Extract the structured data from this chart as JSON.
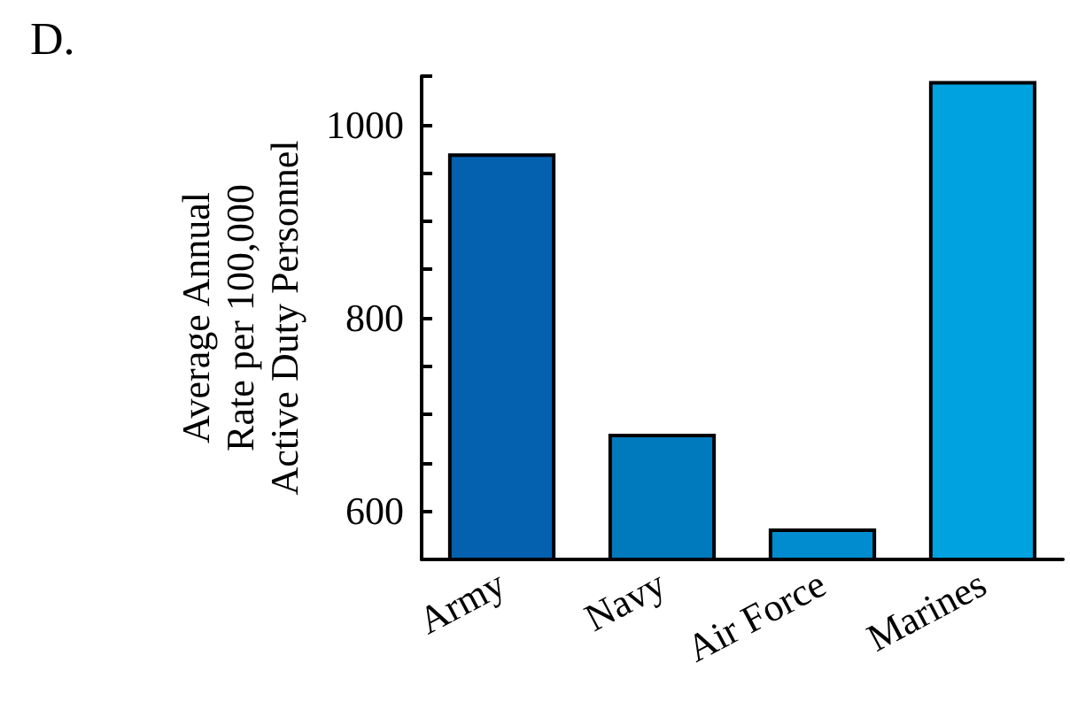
{
  "chart_data": {
    "type": "bar",
    "title": "D.",
    "ylabel": "Average Annual\nRate per 100,000\nActive Duty Personnel",
    "categories": [
      "Army",
      "Navy",
      "Air Force",
      "Marines"
    ],
    "values": [
      970,
      680,
      582,
      1045
    ],
    "colors": [
      "#0461b0",
      "#0079bd",
      "#008ccf",
      "#00a2e0"
    ],
    "ylim": [
      550,
      1050
    ],
    "yticks": [
      {
        "value": 550,
        "label": null
      },
      600,
      {
        "value": 650,
        "label": null
      },
      {
        "value": 700,
        "label": null
      },
      {
        "value": 750,
        "label": null
      },
      800,
      {
        "value": 850,
        "label": null
      },
      {
        "value": 900,
        "label": null
      },
      {
        "value": 950,
        "label": null
      },
      1000,
      {
        "value": 1050,
        "label": null
      }
    ],
    "grid": false
  }
}
